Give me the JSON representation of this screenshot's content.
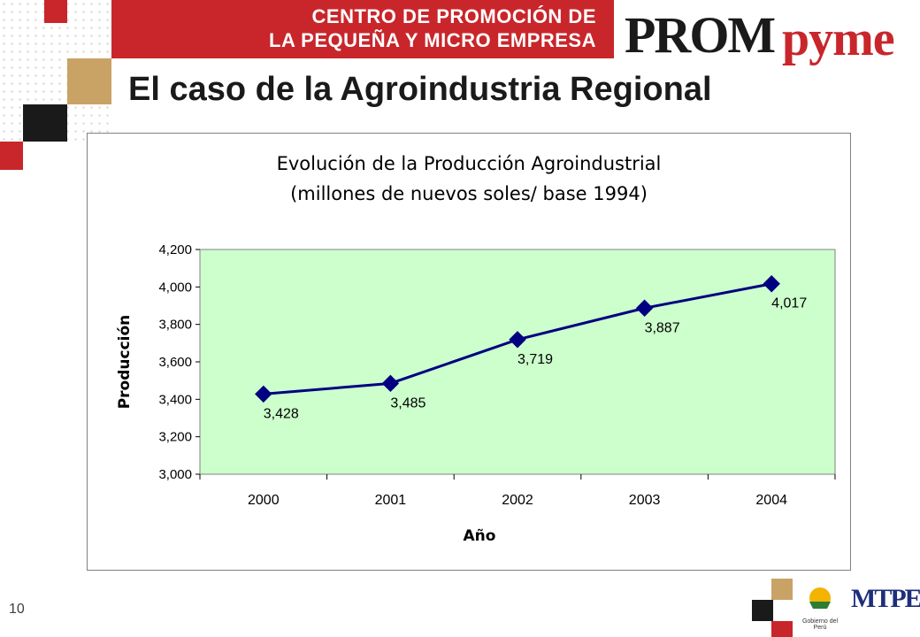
{
  "header": {
    "banner_line1": "CENTRO DE PROMOCIÓN DE",
    "banner_line2": "LA PEQUEÑA Y MICRO EMPRESA",
    "brand_prefix": "PROM",
    "brand_suffix": "pyme"
  },
  "slide_title": "El caso de la Agroindustria Regional",
  "page_number": "10",
  "colors": {
    "banner_red": "#c8262b",
    "accent_tan": "#c9a266",
    "accent_black": "#1a1a1a",
    "plot_bg": "#ccffcc",
    "series_line": "#000080"
  },
  "footer": {
    "logo_left_text": "Gobierno del Perú",
    "logo_right_text": "MTPE"
  },
  "chart_data": {
    "type": "line",
    "title": "Evolución de la Producción Agroindustrial",
    "subtitle": "(millones de nuevos soles/ base 1994)",
    "xlabel": "Año",
    "ylabel": "Producción",
    "categories": [
      "2000",
      "2001",
      "2002",
      "2003",
      "2004"
    ],
    "series": [
      {
        "values": [
          3428,
          3485,
          3719,
          3887,
          4017
        ]
      }
    ],
    "data_labels": [
      "3,428",
      "3,485",
      "3,719",
      "3,887",
      "4,017"
    ],
    "ylim": [
      3000,
      4200
    ],
    "yticks": [
      "3,000",
      "3,200",
      "3,400",
      "3,600",
      "3,800",
      "4,000",
      "4,200"
    ],
    "grid": false,
    "legend": "none",
    "marker": "diamond"
  }
}
